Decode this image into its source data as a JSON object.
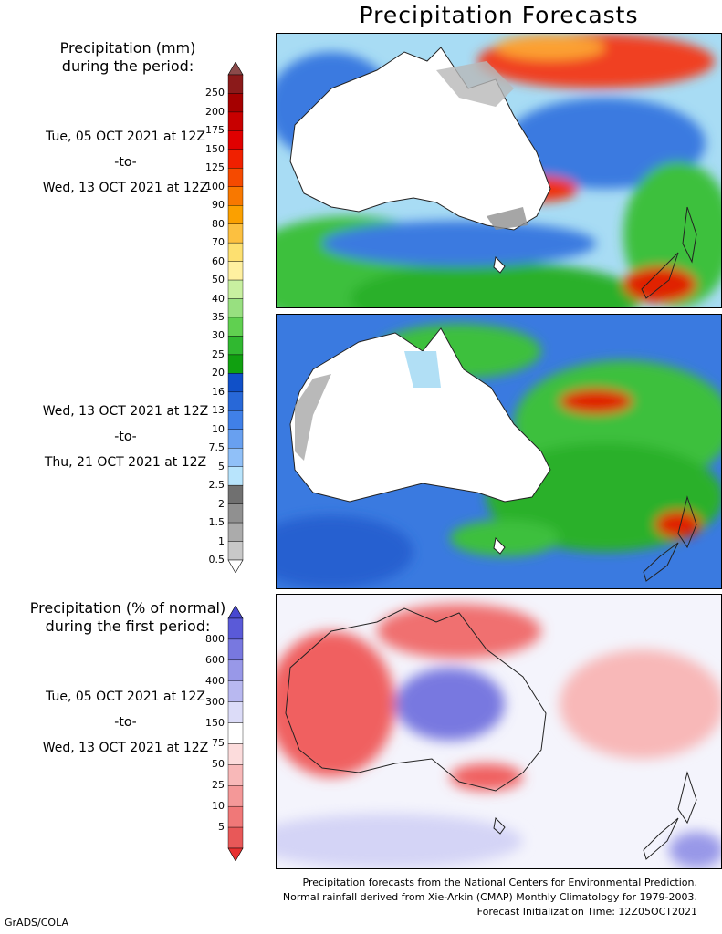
{
  "title": "Precipitation Forecasts",
  "header_amount": [
    "Precipitation (mm)",
    "during the period:"
  ],
  "header_percent": [
    "Precipitation (% of normal)",
    "during the first period:"
  ],
  "periods": [
    {
      "start": "Tue, 05 OCT 2021 at 12Z",
      "sep": "-to-",
      "end": "Wed, 13 OCT 2021 at 12Z"
    },
    {
      "start": "Wed, 13 OCT 2021 at 12Z",
      "sep": "-to-",
      "end": "Thu, 21 OCT 2021 at 12Z"
    },
    {
      "start": "Tue, 05 OCT 2021 at 12Z",
      "sep": "-to-",
      "end": "Wed, 13 OCT 2021 at 12Z"
    }
  ],
  "amount_scale": {
    "labels": [
      "250",
      "200",
      "175",
      "150",
      "125",
      "100",
      "90",
      "80",
      "70",
      "60",
      "50",
      "40",
      "35",
      "30",
      "25",
      "20",
      "16",
      "13",
      "10",
      "7.5",
      "5",
      "2.5",
      "2",
      "1.5",
      "1",
      "0.5"
    ],
    "colors": [
      "#8b1a1a",
      "#a50000",
      "#c80000",
      "#e00000",
      "#f02000",
      "#f54a00",
      "#f87800",
      "#fba000",
      "#fcc040",
      "#fde070",
      "#fff0a0",
      "#c8f0a0",
      "#98e080",
      "#60d050",
      "#30b830",
      "#10a010",
      "#1050c8",
      "#2868d8",
      "#4080e8",
      "#68a0f0",
      "#90c0f8",
      "#b8e4fc",
      "#707070",
      "#909090",
      "#ababab",
      "#c8c8c8"
    ],
    "top_arrow": "#8b4a4a",
    "bottom_arrow": "#ffffff"
  },
  "percent_scale": {
    "labels": [
      "800",
      "600",
      "400",
      "300",
      "150",
      "75",
      "50",
      "25",
      "10",
      "5"
    ],
    "colors": [
      "#5a5ad8",
      "#7878e0",
      "#9898e8",
      "#b8b8f0",
      "#dcdcf8",
      "#ffffff",
      "#fcdcdc",
      "#f8b8b8",
      "#f49898",
      "#f07878",
      "#e85858"
    ],
    "top_arrow": "#4848d0",
    "bottom_arrow": "#e83030"
  },
  "footer": [
    "Precipitation forecasts from the National Centers for Environmental Prediction.",
    "Normal rainfall derived from Xie-Arkin (CMAP) Monthly Climatology for 1979-2003.",
    "Forecast Initialization Time: 12Z05OCT2021"
  ],
  "credit": "GrADS/COLA"
}
